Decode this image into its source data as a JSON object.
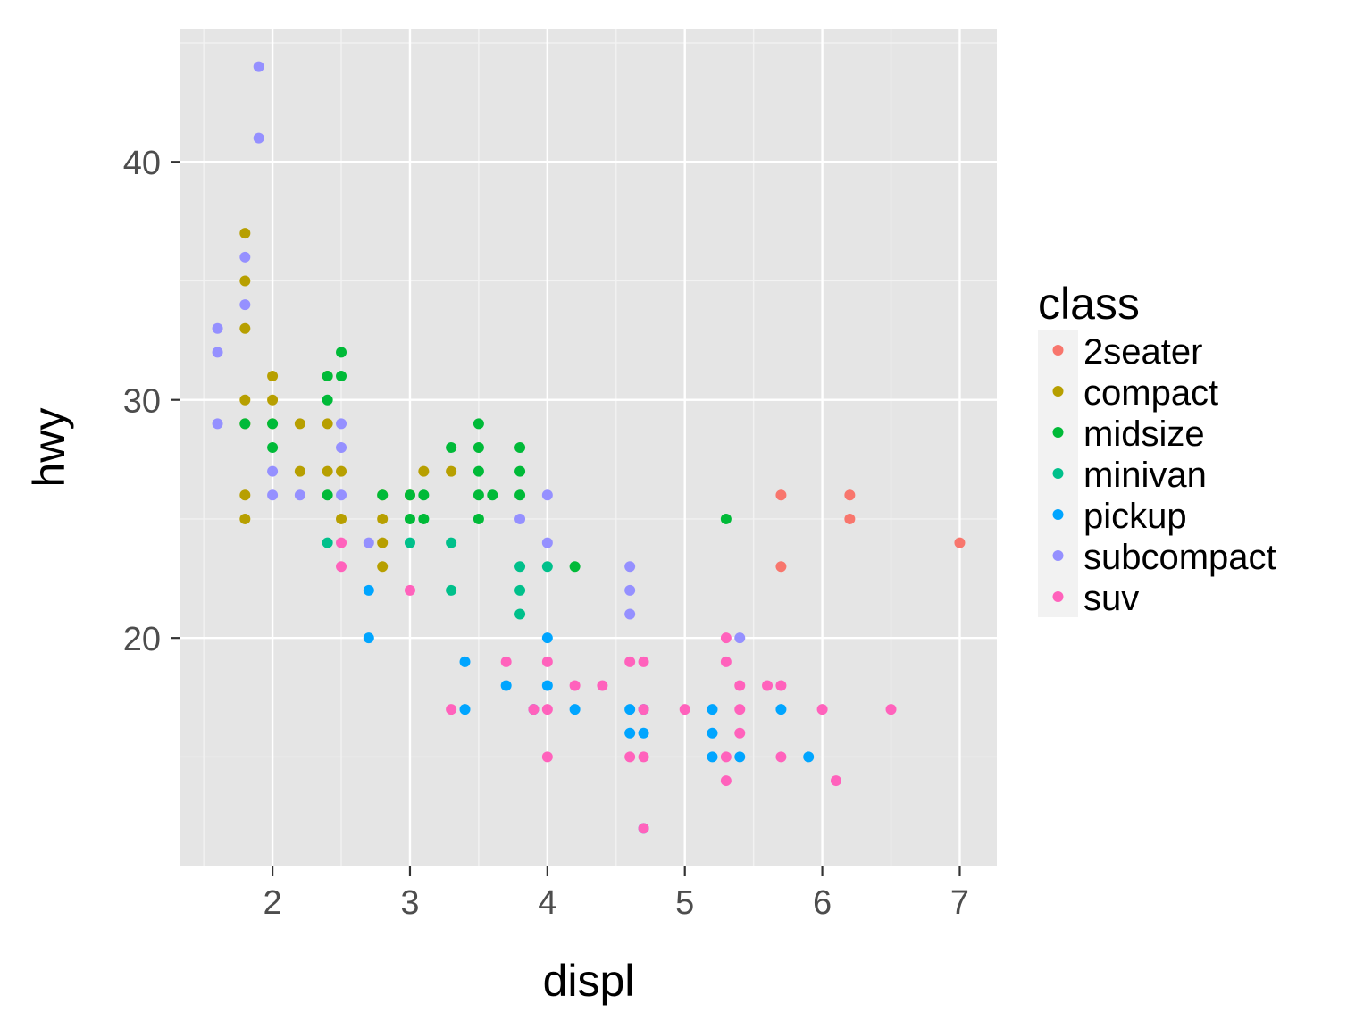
{
  "chart_data": {
    "type": "scatter",
    "title": "",
    "xlabel": "displ",
    "ylabel": "hwy",
    "xlim": [
      1.33,
      7.27
    ],
    "ylim": [
      10.4,
      45.6
    ],
    "x_ticks": [
      2,
      3,
      4,
      5,
      6,
      7
    ],
    "y_ticks": [
      20,
      30,
      40
    ],
    "x_tick_labels": [
      "2",
      "3",
      "4",
      "5",
      "6",
      "7"
    ],
    "y_tick_labels": [
      "20",
      "30",
      "40"
    ],
    "grid": true,
    "background": "#E5E5E5",
    "legend": {
      "title": "class",
      "position": "right"
    },
    "series": [
      {
        "name": "2seater",
        "color": "#F8766D",
        "points": [
          [
            5.7,
            26
          ],
          [
            5.7,
            23
          ],
          [
            6.2,
            26
          ],
          [
            6.2,
            25
          ],
          [
            7.0,
            24
          ]
        ]
      },
      {
        "name": "compact",
        "color": "#B79F00",
        "points": [
          [
            1.8,
            37
          ],
          [
            1.8,
            35
          ],
          [
            1.8,
            33
          ],
          [
            1.8,
            30
          ],
          [
            1.8,
            29
          ],
          [
            1.8,
            26
          ],
          [
            1.8,
            25
          ],
          [
            2.0,
            31
          ],
          [
            2.0,
            30
          ],
          [
            2.0,
            29
          ],
          [
            2.2,
            29
          ],
          [
            2.2,
            27
          ],
          [
            2.4,
            31
          ],
          [
            2.4,
            29
          ],
          [
            2.4,
            27
          ],
          [
            2.5,
            27
          ],
          [
            2.5,
            25
          ],
          [
            2.8,
            26
          ],
          [
            2.8,
            25
          ],
          [
            2.8,
            24
          ],
          [
            2.8,
            23
          ],
          [
            3.0,
            26
          ],
          [
            3.1,
            27
          ],
          [
            3.3,
            27
          ]
        ]
      },
      {
        "name": "midsize",
        "color": "#00BA38",
        "points": [
          [
            1.8,
            29
          ],
          [
            2.0,
            29
          ],
          [
            2.0,
            28
          ],
          [
            2.4,
            31
          ],
          [
            2.4,
            30
          ],
          [
            2.4,
            26
          ],
          [
            2.5,
            32
          ],
          [
            2.5,
            31
          ],
          [
            2.8,
            26
          ],
          [
            3.0,
            26
          ],
          [
            3.0,
            25
          ],
          [
            3.1,
            26
          ],
          [
            3.1,
            25
          ],
          [
            3.3,
            28
          ],
          [
            3.5,
            29
          ],
          [
            3.5,
            28
          ],
          [
            3.5,
            27
          ],
          [
            3.5,
            26
          ],
          [
            3.5,
            25
          ],
          [
            3.6,
            26
          ],
          [
            3.8,
            28
          ],
          [
            3.8,
            27
          ],
          [
            3.8,
            26
          ],
          [
            4.2,
            23
          ],
          [
            5.3,
            25
          ]
        ]
      },
      {
        "name": "minivan",
        "color": "#00C08B",
        "points": [
          [
            2.4,
            24
          ],
          [
            3.0,
            24
          ],
          [
            3.3,
            24
          ],
          [
            3.3,
            22
          ],
          [
            3.8,
            23
          ],
          [
            3.8,
            22
          ],
          [
            3.8,
            21
          ],
          [
            4.0,
            23
          ]
        ]
      },
      {
        "name": "pickup",
        "color": "#00A5FF",
        "points": [
          [
            2.7,
            22
          ],
          [
            2.7,
            20
          ],
          [
            3.4,
            19
          ],
          [
            3.4,
            17
          ],
          [
            3.7,
            18
          ],
          [
            3.9,
            17
          ],
          [
            4.0,
            20
          ],
          [
            4.0,
            18
          ],
          [
            4.2,
            17
          ],
          [
            4.6,
            17
          ],
          [
            4.6,
            16
          ],
          [
            4.7,
            17
          ],
          [
            4.7,
            16
          ],
          [
            4.7,
            12
          ],
          [
            5.2,
            17
          ],
          [
            5.2,
            16
          ],
          [
            5.2,
            15
          ],
          [
            5.4,
            15
          ],
          [
            5.7,
            17
          ],
          [
            5.9,
            15
          ]
        ]
      },
      {
        "name": "subcompact",
        "color": "#9590FF",
        "points": [
          [
            1.6,
            33
          ],
          [
            1.6,
            32
          ],
          [
            1.6,
            29
          ],
          [
            1.8,
            36
          ],
          [
            1.8,
            34
          ],
          [
            1.9,
            44
          ],
          [
            1.9,
            41
          ],
          [
            2.0,
            27
          ],
          [
            2.0,
            26
          ],
          [
            2.2,
            26
          ],
          [
            2.5,
            29
          ],
          [
            2.5,
            28
          ],
          [
            2.5,
            26
          ],
          [
            2.7,
            24
          ],
          [
            3.8,
            25
          ],
          [
            4.0,
            26
          ],
          [
            4.0,
            24
          ],
          [
            4.6,
            23
          ],
          [
            4.6,
            22
          ],
          [
            4.6,
            21
          ],
          [
            5.4,
            20
          ]
        ]
      },
      {
        "name": "suv",
        "color": "#FF62BC",
        "points": [
          [
            2.5,
            24
          ],
          [
            2.5,
            23
          ],
          [
            3.0,
            22
          ],
          [
            3.3,
            17
          ],
          [
            3.7,
            19
          ],
          [
            3.9,
            17
          ],
          [
            4.0,
            19
          ],
          [
            4.0,
            17
          ],
          [
            4.0,
            15
          ],
          [
            4.2,
            18
          ],
          [
            4.4,
            18
          ],
          [
            4.6,
            19
          ],
          [
            4.6,
            15
          ],
          [
            4.7,
            19
          ],
          [
            4.7,
            17
          ],
          [
            4.7,
            15
          ],
          [
            4.7,
            12
          ],
          [
            5.0,
            17
          ],
          [
            5.3,
            20
          ],
          [
            5.3,
            19
          ],
          [
            5.3,
            15
          ],
          [
            5.3,
            14
          ],
          [
            5.4,
            18
          ],
          [
            5.4,
            17
          ],
          [
            5.4,
            16
          ],
          [
            5.6,
            18
          ],
          [
            5.7,
            18
          ],
          [
            5.7,
            15
          ],
          [
            6.0,
            17
          ],
          [
            6.1,
            14
          ],
          [
            6.5,
            17
          ]
        ]
      }
    ]
  }
}
